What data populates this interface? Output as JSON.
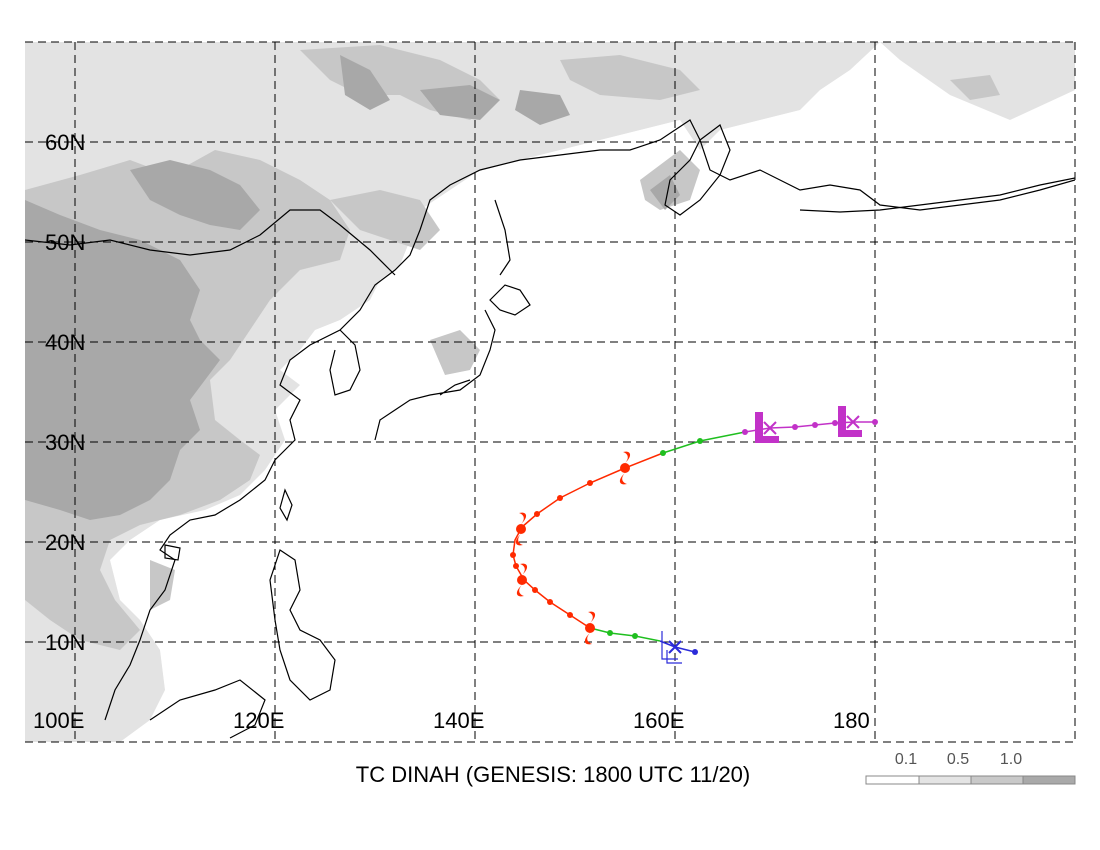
{
  "title": "TC DINAH (GENESIS: 1800 UTC 11/20)",
  "lat_labels": [
    "60N",
    "50N",
    "40N",
    "30N",
    "20N",
    "10N"
  ],
  "lon_labels": [
    "100E",
    "120E",
    "140E",
    "160E",
    "180"
  ],
  "legend": {
    "labels": [
      "0.1",
      "0.5",
      "1.0"
    ],
    "colors": [
      "#ffffff",
      "#e4e4e4",
      "#c9c9c9",
      "#a9a9a9"
    ]
  },
  "colors": {
    "track_early": "#2b2bd9",
    "track_storm": "#1fbf1f",
    "track_typhoon": "#ff2a00",
    "track_extratropical": "#c232c8",
    "land_low": "#e3e3e3",
    "land_mid": "#c7c7c7",
    "land_high": "#a8a8a8",
    "coastline": "#000000"
  },
  "icons": [
    "typhoon-icon",
    "low-pressure-icon",
    "genesis-x-icon",
    "weak-low-icon"
  ]
}
